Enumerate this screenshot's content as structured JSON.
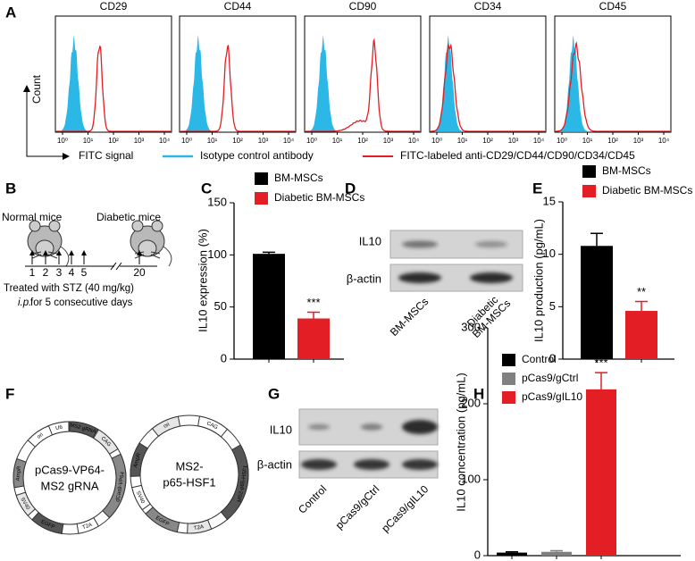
{
  "flow": {
    "label": "A",
    "markers": [
      "CD29",
      "CD44",
      "CD90",
      "CD34",
      "CD45"
    ],
    "x_ticks": [
      "10⁰",
      "10¹",
      "10²",
      "10³",
      "10⁴"
    ],
    "y_label": "Count",
    "x_label": "FITC signal",
    "legend": [
      {
        "name": "Isotype control antibody",
        "color": "#2bb8e6"
      },
      {
        "name": "FITC-labeled anti-CD29/CD44/CD90/CD34/CD45",
        "color": "#e31e24"
      }
    ]
  },
  "mouse_model": {
    "label": "B",
    "normal": "Normal mice",
    "diabetic": "Diabetic mice",
    "days": [
      1,
      2,
      3,
      4,
      5,
      20
    ],
    "treatment": "Treated with STZ (40 mg/kg)",
    "route": "i.p.",
    "duration": "for 5 consecutive days"
  },
  "blot_d": {
    "label": "D",
    "rows": [
      "IL10",
      "β-actin"
    ],
    "lanes": [
      [
        "BM-MSCs"
      ],
      [
        "Diabetic",
        "BM-MSCs"
      ]
    ]
  },
  "plasmids": {
    "label": "F",
    "items": [
      {
        "name": [
          "pCas9-VP64-",
          "MS2 gRNA"
        ],
        "elements": [
          "U6",
          "MS2 gRNA",
          "CAG",
          "dCas9-VP64",
          "T2A",
          "EGFP",
          "SV40",
          "AmpR",
          "ori"
        ]
      },
      {
        "name": [
          "MS2-",
          "p65-HSF1"
        ],
        "elements": [
          "CAG",
          "MS2-p65-HSF1",
          "T2A",
          "EGFP",
          "SV40",
          "AmpR",
          "ori"
        ]
      }
    ]
  },
  "blot_g": {
    "label": "G",
    "rows": [
      "IL10",
      "β-actin"
    ],
    "lanes": [
      "Control",
      "pCas9/gCtrl",
      "pCas9/gIL10"
    ]
  },
  "chart_data": [
    {
      "type": "bar",
      "panel": "C",
      "ylabel": "IL10 expression (%)",
      "ylim": [
        0,
        150
      ],
      "yticks": [
        0,
        50,
        100,
        150
      ],
      "series": [
        {
          "name": "BM-MSCs",
          "color": "#000000",
          "values": [
            101
          ],
          "errors": [
            1.5
          ]
        },
        {
          "name": "Diabetic BM-MSCs",
          "color": "#e31e24",
          "values": [
            39
          ],
          "errors": [
            6
          ],
          "significance": "***"
        }
      ]
    },
    {
      "type": "bar",
      "panel": "E",
      "ylabel": "IL10 production (pg/mL)",
      "ylim": [
        0,
        15
      ],
      "yticks": [
        0,
        5,
        10,
        15
      ],
      "series": [
        {
          "name": "BM-MSCs",
          "color": "#000000",
          "values": [
            10.8
          ],
          "errors": [
            1.2
          ]
        },
        {
          "name": "Diabetic BM-MSCs",
          "color": "#e31e24",
          "values": [
            4.6
          ],
          "errors": [
            0.9
          ],
          "significance": "**"
        }
      ]
    },
    {
      "type": "bar",
      "panel": "H",
      "ylabel": "IL10 concentration (pg/mL)",
      "ylim": [
        0,
        300
      ],
      "yticks": [
        0,
        100,
        200,
        300
      ],
      "series": [
        {
          "name": "Control",
          "color": "#000000",
          "values": [
            4
          ],
          "errors": [
            1
          ]
        },
        {
          "name": "pCas9/gCtrl",
          "color": "#808080",
          "values": [
            5
          ],
          "errors": [
            1.5
          ]
        },
        {
          "name": "pCas9/gIL10",
          "color": "#e31e24",
          "values": [
            219
          ],
          "errors": [
            22
          ],
          "significance": "***"
        }
      ]
    }
  ]
}
